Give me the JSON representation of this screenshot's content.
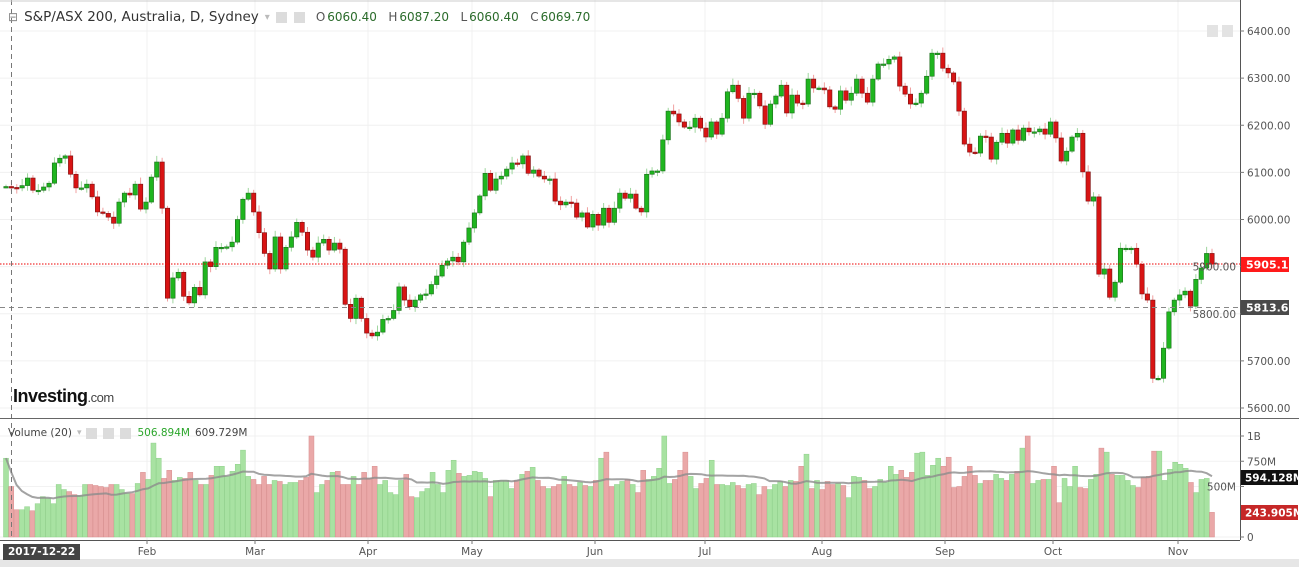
{
  "header": {
    "title": "S&P/ASX 200, Australia, D, Sydney",
    "open_label": "O",
    "open": "6060.40",
    "high_label": "H",
    "high": "6087.20",
    "low_label": "L",
    "low": "6060.40",
    "close_label": "C",
    "close": "6069.70"
  },
  "volume_header": {
    "title": "Volume (20)",
    "value": "506.894M",
    "ma_value": "609.729M"
  },
  "logo": {
    "main": "Investing",
    "suffix": ".com"
  },
  "crosshair_date": "2017-12-22",
  "price_axis": {
    "ticks": [
      "6400.00",
      "6300.00",
      "6200.00",
      "6100.00",
      "6000.00",
      "5900.00",
      "5800.00",
      "5700.00",
      "5600.00"
    ],
    "last_price_label": "5905.10",
    "crosshair_label": "5813.65"
  },
  "volume_axis": {
    "ticks": [
      "1B",
      "750M",
      "500M",
      "0"
    ],
    "ma_label": "594.128M",
    "last_volume_label": "243.905M"
  },
  "colors": {
    "up": "#1fb51f",
    "down": "#d81414",
    "vol_up": "#a8e2a2",
    "vol_down": "#eaa8a8",
    "ma": "#8c8c8c",
    "last_price": "#ff1a1a",
    "crosshair_label": "#4a4a4a"
  },
  "chart_data": {
    "type": "candlestick",
    "title": "S&P/ASX 200, Australia, D, Sydney",
    "x_tick_labels": [
      "Feb",
      "Mar",
      "Apr",
      "May",
      "Jun",
      "Jul",
      "Aug",
      "Sep",
      "Oct",
      "Nov"
    ],
    "ylim": [
      5600,
      6400
    ],
    "grid": true,
    "close": [
      6070,
      6068,
      6067,
      6072,
      6088,
      6062,
      6062,
      6069,
      6077,
      6120,
      6130,
      6135,
      6096,
      6067,
      6067,
      6075,
      6048,
      6016,
      6013,
      6005,
      5992,
      6037,
      6056,
      6052,
      6075,
      6022,
      6037,
      6090,
      6122,
      6024,
      5833,
      5876,
      5888,
      5837,
      5823,
      5856,
      5840,
      5910,
      5900,
      5941,
      5941,
      5942,
      5952,
      6000,
      6043,
      6056,
      6016,
      5972,
      5928,
      5895,
      5963,
      5895,
      5941,
      5963,
      5994,
      5973,
      5935,
      5920,
      5950,
      5958,
      5935,
      5950,
      5937,
      5820,
      5790,
      5833,
      5790,
      5759,
      5753,
      5761,
      5788,
      5790,
      5807,
      5857,
      5829,
      5815,
      5829,
      5840,
      5842,
      5862,
      5880,
      5903,
      5912,
      5920,
      5910,
      5952,
      5982,
      6014,
      6050,
      6098,
      6062,
      6086,
      6092,
      6107,
      6120,
      6118,
      6135,
      6098,
      6105,
      6092,
      6086,
      6086,
      6039,
      6031,
      6037,
      6035,
      6005,
      6014,
      5984,
      6011,
      5988,
      6024,
      5994,
      6024,
      6056,
      6045,
      6054,
      6024,
      6016,
      6096,
      6103,
      6103,
      6169,
      6230,
      6224,
      6207,
      6196,
      6196,
      6215,
      6194,
      6175,
      6207,
      6181,
      6215,
      6271,
      6285,
      6257,
      6215,
      6268,
      6268,
      6241,
      6202,
      6245,
      6262,
      6285,
      6226,
      6264,
      6247,
      6245,
      6298,
      6279,
      6279,
      6275,
      6239,
      6234,
      6273,
      6253,
      6268,
      6298,
      6268,
      6249,
      6298,
      6330,
      6330,
      6340,
      6345,
      6283,
      6266,
      6245,
      6247,
      6268,
      6304,
      6353,
      6353,
      6321,
      6311,
      6292,
      6230,
      6160,
      6143,
      6141,
      6177,
      6175,
      6128,
      6164,
      6183,
      6162,
      6190,
      6168,
      6194,
      6186,
      6186,
      6192,
      6181,
      6207,
      6173,
      6124,
      6145,
      6175,
      6183,
      6101,
      6039,
      6048,
      5884,
      5895,
      5835,
      5867,
      5939,
      5939,
      5939,
      5905,
      5842,
      5829,
      5663,
      5663,
      5727,
      5804,
      5829,
      5840,
      5848,
      5816,
      5873,
      5897,
      5928,
      5905.1
    ],
    "volume_millions": [
      780,
      500,
      270,
      270,
      300,
      260,
      330,
      400,
      380,
      330,
      520,
      470,
      450,
      420,
      410,
      520,
      520,
      510,
      500,
      490,
      520,
      520,
      470,
      430,
      430,
      530,
      640,
      570,
      930,
      780,
      580,
      660,
      560,
      590,
      580,
      640,
      560,
      520,
      520,
      610,
      700,
      700,
      600,
      650,
      720,
      860,
      600,
      570,
      520,
      600,
      520,
      560,
      550,
      520,
      540,
      540,
      560,
      590,
      1000,
      440,
      520,
      560,
      640,
      650,
      520,
      520,
      600,
      520,
      640,
      580,
      700,
      520,
      560,
      440,
      420,
      560,
      620,
      400,
      390,
      450,
      480,
      640,
      520,
      440,
      660,
      760,
      630,
      600,
      610,
      650,
      640,
      580,
      400,
      560,
      560,
      560,
      480,
      560,
      620,
      650,
      690,
      560,
      500,
      480,
      500,
      520,
      600,
      520,
      500,
      540,
      510,
      500,
      560,
      780,
      840,
      500,
      520,
      550,
      570,
      520,
      440,
      660,
      570,
      600,
      680,
      1000,
      530,
      570,
      660,
      840,
      600,
      480,
      530,
      580,
      760,
      520,
      520,
      510,
      540,
      510,
      480,
      520,
      530,
      420,
      500,
      470,
      520,
      550,
      500,
      560,
      550,
      700,
      820,
      480,
      560,
      470,
      550,
      520,
      530,
      510,
      390,
      600,
      590,
      560,
      480,
      500,
      570,
      540,
      700,
      620,
      660,
      590,
      640,
      830,
      840,
      610,
      710,
      780,
      700,
      790,
      490,
      500,
      600,
      700,
      610,
      530,
      560,
      560,
      620,
      580,
      560,
      620,
      650,
      880,
      1000,
      530,
      560,
      570,
      570,
      700,
      340,
      580,
      500,
      700,
      490,
      480,
      570,
      620,
      880,
      840,
      620,
      610,
      610,
      560,
      510,
      490,
      590,
      600,
      850,
      850,
      560,
      670,
      740,
      720,
      680,
      540,
      440,
      570,
      580,
      243.905
    ],
    "volume_ma_period": 20
  }
}
